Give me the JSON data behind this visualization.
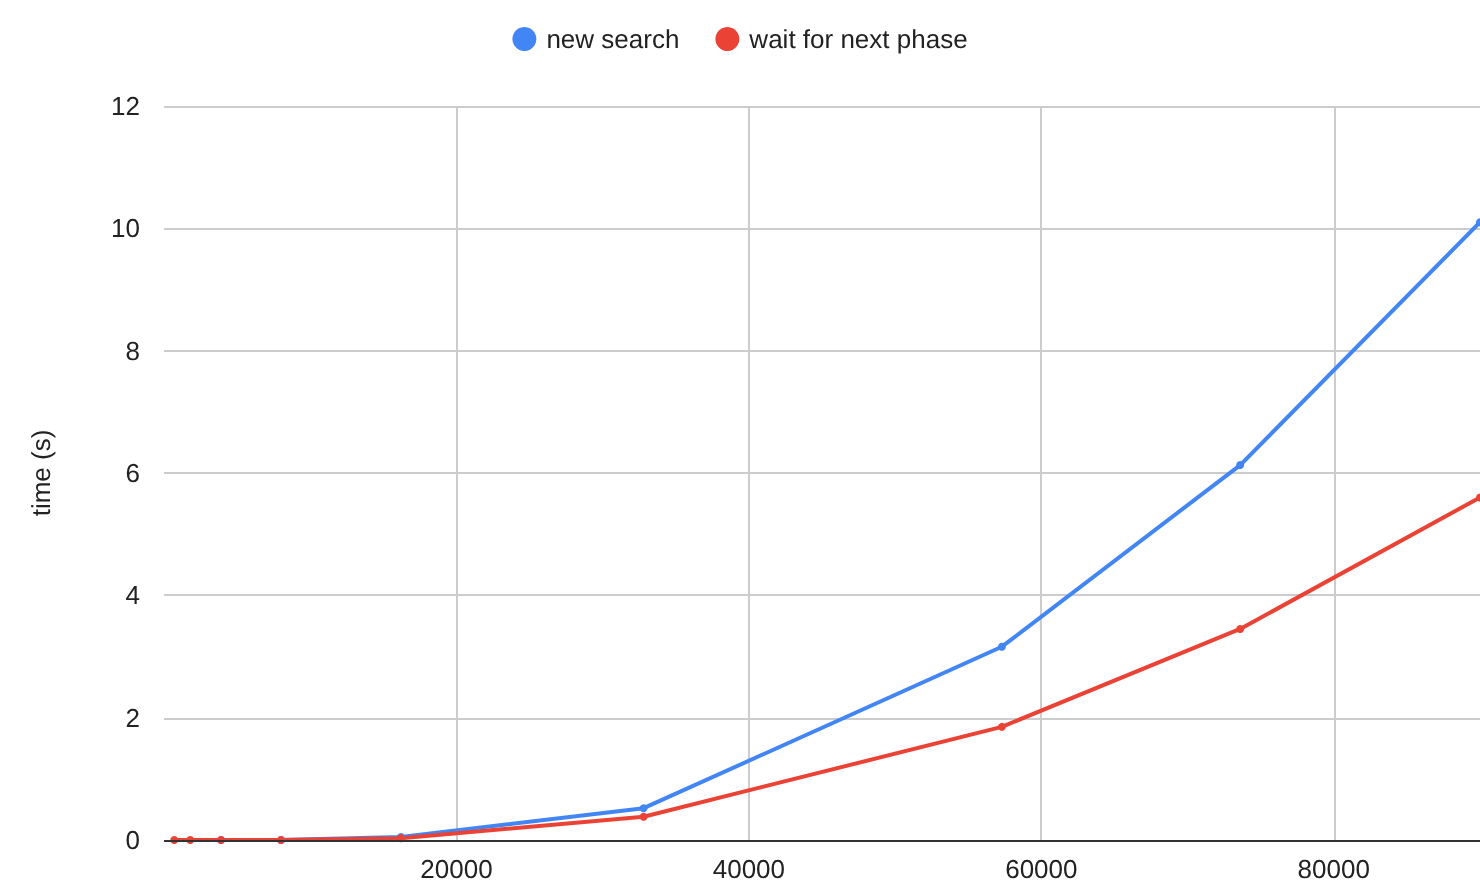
{
  "chart_data": {
    "type": "line",
    "ylabel": "time (s)",
    "x": [
      700,
      1800,
      3900,
      8000,
      16200,
      32800,
      57300,
      73600,
      90000
    ],
    "series": [
      {
        "name": "new search",
        "color": "#4285f4",
        "values": [
          null,
          null,
          0,
          0,
          0.05,
          0.52,
          3.16,
          6.13,
          10.1
        ]
      },
      {
        "name": "wait for next phase",
        "color": "#ea4335",
        "values": [
          0,
          0,
          0,
          0,
          0.03,
          0.38,
          1.85,
          3.45,
          5.6
        ]
      }
    ],
    "xlim": [
      0,
      90000
    ],
    "xticks": [
      20000,
      40000,
      60000,
      80000
    ],
    "ylim": [
      0,
      12
    ],
    "yticks": [
      0,
      2,
      4,
      6,
      8,
      10,
      12
    ],
    "grid": true,
    "legend": "top",
    "marker": "circle",
    "line_style": "solid"
  }
}
